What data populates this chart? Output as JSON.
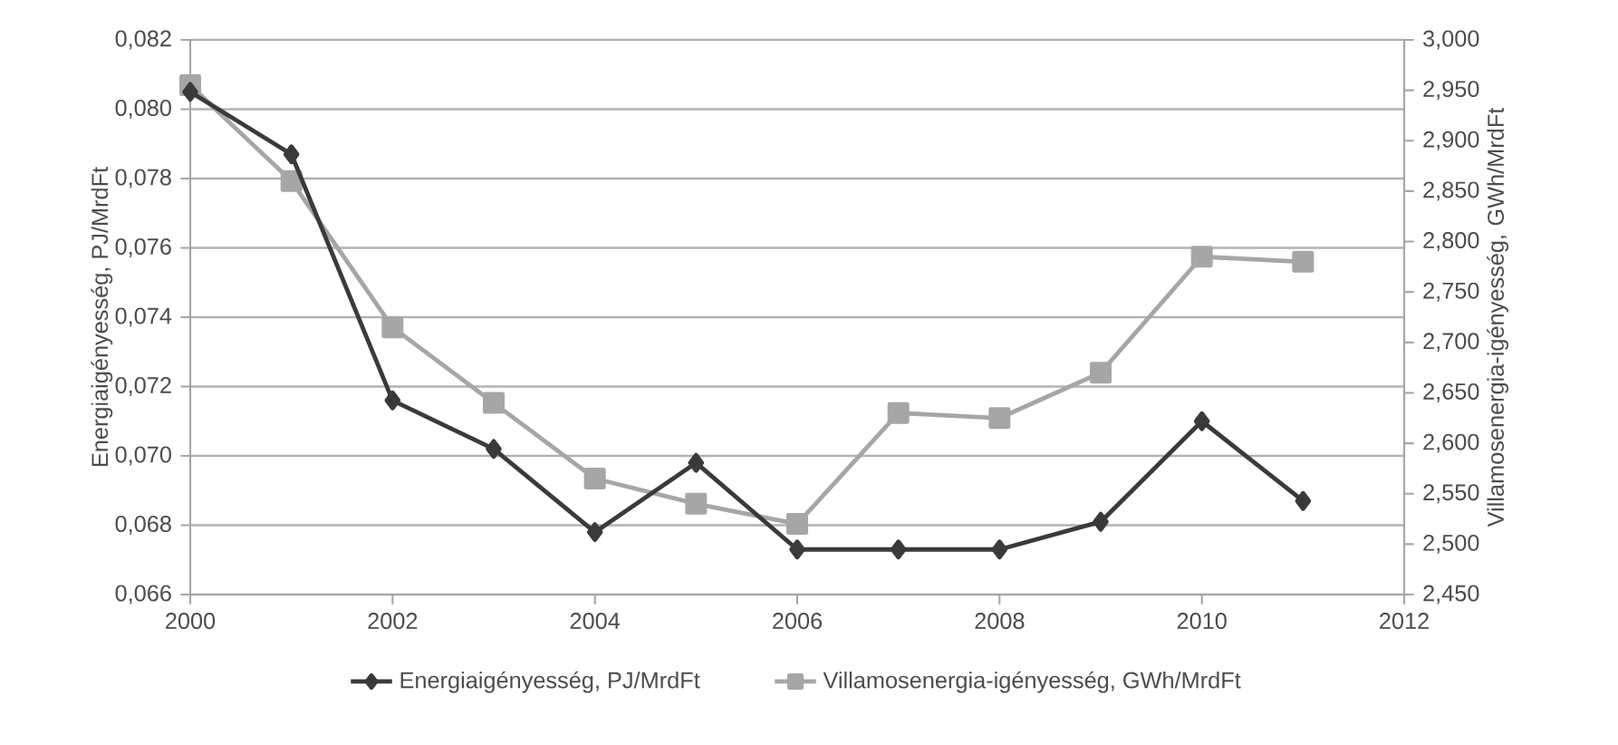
{
  "chart_data": {
    "type": "line",
    "x": [
      2000,
      2001,
      2002,
      2003,
      2004,
      2005,
      2006,
      2007,
      2008,
      2009,
      2010,
      2011
    ],
    "series": [
      {
        "name": "Energiaigényesség, PJ/MrdFt",
        "color": "#3a3a3a",
        "marker": "diamond",
        "values": [
          0.0805,
          0.0787,
          0.0716,
          0.0702,
          0.0678,
          0.0698,
          0.0673,
          0.0673,
          0.0673,
          0.0681,
          0.071,
          0.0687
        ]
      },
      {
        "name": "Villamosenergia-igényesség, GWh/MrdFt",
        "color": "#a6a6a6",
        "marker": "square",
        "axis": "y2",
        "values": [
          2.955,
          2.86,
          2.715,
          2.64,
          2.565,
          2.54,
          2.52,
          2.63,
          2.625,
          2.67,
          2.785,
          2.78
        ]
      }
    ],
    "ylabel": "Energiaigényesség, PJ/MrdFt",
    "y2label": "Villamosenergia-igényesség, GWh/MrdFt",
    "xlim": [
      2000,
      2012
    ],
    "xticks": [
      2000,
      2002,
      2004,
      2006,
      2008,
      2010,
      2012
    ],
    "ylim": [
      0.066,
      0.082
    ],
    "yticks": [
      {
        "value": 0.066,
        "label": "0,066"
      },
      {
        "value": 0.068,
        "label": "0,068"
      },
      {
        "value": 0.07,
        "label": "0,070"
      },
      {
        "value": 0.072,
        "label": "0,072"
      },
      {
        "value": 0.074,
        "label": "0,074"
      },
      {
        "value": 0.076,
        "label": "0,076"
      },
      {
        "value": 0.078,
        "label": "0,078"
      },
      {
        "value": 0.08,
        "label": "0,080"
      },
      {
        "value": 0.082,
        "label": "0,082"
      }
    ],
    "y2lim": [
      2.45,
      3.0
    ],
    "y2ticks": [
      {
        "value": 2.45,
        "label": "2,450"
      },
      {
        "value": 2.5,
        "label": "2,500"
      },
      {
        "value": 2.55,
        "label": "2,550"
      },
      {
        "value": 2.6,
        "label": "2,600"
      },
      {
        "value": 2.65,
        "label": "2,650"
      },
      {
        "value": 2.7,
        "label": "2,700"
      },
      {
        "value": 2.75,
        "label": "2,750"
      },
      {
        "value": 2.8,
        "label": "2,800"
      },
      {
        "value": 2.85,
        "label": "2,850"
      },
      {
        "value": 2.9,
        "label": "2,900"
      },
      {
        "value": 2.95,
        "label": "2,950"
      },
      {
        "value": 3.0,
        "label": "3,000"
      }
    ],
    "grid": "y",
    "legend": "bottom",
    "line_style": "solid"
  }
}
